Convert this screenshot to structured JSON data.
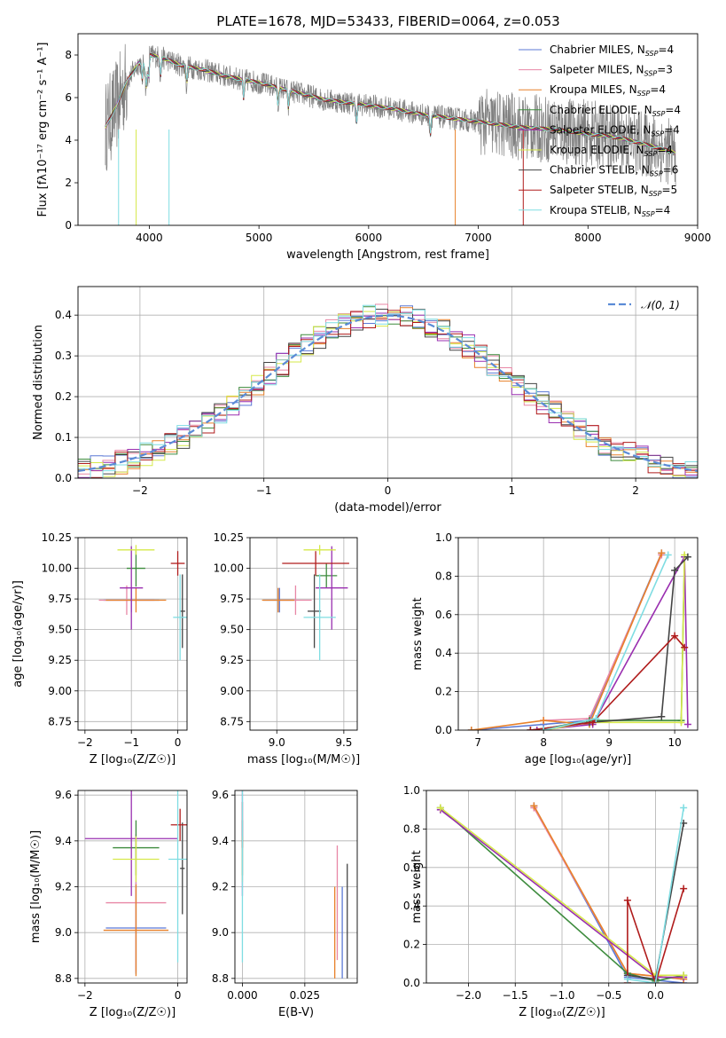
{
  "title": "PLATE=1678, MJD=53433, FIBERID=0064, z=0.053",
  "colors": {
    "chabrier_miles": "#5b79d6",
    "salpeter_miles": "#e887a6",
    "kroupa_miles": "#e8812a",
    "chabrier_elodie": "#3d8b3d",
    "salpeter_elodie": "#9a2fb0",
    "kroupa_elodie": "#d6e84a",
    "chabrier_stelib": "#444444",
    "salpeter_stelib": "#b01c1c",
    "kroupa_stelib": "#7fdde2",
    "data": "#7f7f7f",
    "gauss": "#5b8bd6"
  },
  "chart_data": [
    {
      "id": "spectrum",
      "type": "line",
      "xlabel": "wavelength [Angstrom, rest frame]",
      "ylabel": "Flux [fλ10⁻¹⁷ erg cm⁻² s⁻¹ A⁻¹]",
      "xlim": [
        3350,
        9000
      ],
      "ylim": [
        0,
        9
      ],
      "xticks": [
        "4000",
        "5000",
        "6000",
        "7000",
        "8000",
        "9000"
      ],
      "yticks": [
        "0",
        "2",
        "4",
        "6",
        "8"
      ],
      "continuum": {
        "x": [
          3600,
          3700,
          3800,
          3900,
          4000,
          4100,
          4300,
          4500,
          4700,
          5000,
          5300,
          5600,
          5900,
          6200,
          6500,
          6800,
          7100,
          7400,
          7700,
          8000,
          8300,
          8600,
          8800
        ],
        "y": [
          4.6,
          5.6,
          6.8,
          7.6,
          8.0,
          7.9,
          7.5,
          7.3,
          7.0,
          6.7,
          6.3,
          5.9,
          5.7,
          5.5,
          5.2,
          5.0,
          4.8,
          4.6,
          4.5,
          4.3,
          4.1,
          3.7,
          3.4
        ]
      },
      "legend": [
        {
          "name": "Chabrier MILES, N",
          "sub": "SSP",
          "val": "=4",
          "key": "chabrier_miles"
        },
        {
          "name": "Salpeter MILES, N",
          "sub": "SSP",
          "val": "=3",
          "key": "salpeter_miles"
        },
        {
          "name": "Kroupa MILES, N",
          "sub": "SSP",
          "val": "=4",
          "key": "kroupa_miles"
        },
        {
          "name": "Chabrier ELODIE, N",
          "sub": "SSP",
          "val": "=4",
          "key": "chabrier_elodie"
        },
        {
          "name": "Salpeter ELODIE, N",
          "sub": "SSP",
          "val": "=4",
          "key": "salpeter_elodie"
        },
        {
          "name": "Kroupa ELODIE, N",
          "sub": "SSP",
          "val": "=4",
          "key": "kroupa_elodie"
        },
        {
          "name": "Chabrier STELIB, N",
          "sub": "SSP",
          "val": "=6",
          "key": "chabrier_stelib"
        },
        {
          "name": "Salpeter STELIB, N",
          "sub": "SSP",
          "val": "=5",
          "key": "salpeter_stelib"
        },
        {
          "name": "Kroupa STELIB, N",
          "sub": "SSP",
          "val": "=4",
          "key": "kroupa_stelib"
        }
      ],
      "legend_loc": "top-right"
    },
    {
      "id": "residuals",
      "type": "histogram",
      "xlabel": "(data-model)/error",
      "ylabel": "Normed distribution",
      "xlim": [
        -2.5,
        2.5
      ],
      "ylim": [
        0,
        0.47
      ],
      "xticks": [
        "−2",
        "−1",
        "0",
        "1",
        "2"
      ],
      "yticks": [
        "0.0",
        "0.1",
        "0.2",
        "0.3",
        "0.4"
      ],
      "legend": "𝒩(0, 1)",
      "legend_loc": "top-right",
      "bin_width": 0.1
    },
    {
      "id": "age_vs_Z",
      "type": "scatter",
      "xlabel": "Z [log₁₀(Z/Z☉)]",
      "ylabel": "age  [log₁₀(age/yr)]",
      "xlim": [
        -2.15,
        0.2
      ],
      "ylim": [
        8.68,
        10.25
      ],
      "xticks": [
        "−2",
        "−1",
        "0"
      ],
      "yticks": [
        "8.75",
        "9.00",
        "9.25",
        "9.50",
        "9.75",
        "10.00",
        "10.25"
      ],
      "points": [
        {
          "key": "chabrier_miles",
          "x": -1.0,
          "y": 9.74,
          "xerr": 0.6,
          "yerr": 0.1
        },
        {
          "key": "salpeter_miles",
          "x": -1.1,
          "y": 9.74,
          "xerr": 0.6,
          "yerr": 0.12
        },
        {
          "key": "kroupa_miles",
          "x": -0.9,
          "y": 9.74,
          "xerr": 0.65,
          "yerr": 0.1
        },
        {
          "key": "chabrier_elodie",
          "x": -0.9,
          "y": 10.0,
          "xerr": 0.2,
          "yerr": 0.15
        },
        {
          "key": "salpeter_elodie",
          "x": -1.0,
          "y": 9.84,
          "xerr": 0.25,
          "yerr": 0.34
        },
        {
          "key": "kroupa_elodie",
          "x": -0.9,
          "y": 10.15,
          "xerr": 0.4,
          "yerr": 0.04
        },
        {
          "key": "chabrier_stelib",
          "x": 0.1,
          "y": 9.65,
          "xerr": 0.06,
          "yerr": 0.3
        },
        {
          "key": "salpeter_stelib",
          "x": 0.0,
          "y": 10.04,
          "xerr": 0.15,
          "yerr": 0.1
        },
        {
          "key": "kroupa_stelib",
          "x": 0.05,
          "y": 9.6,
          "xerr": 0.15,
          "yerr": 0.35
        }
      ]
    },
    {
      "id": "age_vs_mass",
      "type": "scatter",
      "xlabel": "mass [log₁₀(M/M☉)]",
      "xlim": [
        8.8,
        9.6
      ],
      "ylim": [
        8.68,
        10.25
      ],
      "xticks": [
        "9.0",
        "9.5"
      ],
      "yticks": [
        "8.75",
        "9.00",
        "9.25",
        "9.50",
        "9.75",
        "10.00",
        "10.25"
      ],
      "points": [
        {
          "key": "chabrier_miles",
          "x": 9.02,
          "y": 9.74,
          "xerr": 0.12,
          "yerr": 0.1
        },
        {
          "key": "salpeter_miles",
          "x": 9.14,
          "y": 9.74,
          "xerr": 0.12,
          "yerr": 0.12
        },
        {
          "key": "kroupa_miles",
          "x": 9.01,
          "y": 9.74,
          "xerr": 0.12,
          "yerr": 0.1
        },
        {
          "key": "chabrier_elodie",
          "x": 9.37,
          "y": 9.94,
          "xerr": 0.08,
          "yerr": 0.1
        },
        {
          "key": "salpeter_elodie",
          "x": 9.41,
          "y": 9.84,
          "xerr": 0.12,
          "yerr": 0.34
        },
        {
          "key": "kroupa_elodie",
          "x": 9.32,
          "y": 10.15,
          "xerr": 0.12,
          "yerr": 0.04
        },
        {
          "key": "chabrier_stelib",
          "x": 9.28,
          "y": 9.65,
          "xerr": 0.05,
          "yerr": 0.3
        },
        {
          "key": "salpeter_stelib",
          "x": 9.29,
          "y": 10.04,
          "xerr": 0.25,
          "yerr": 0.1
        },
        {
          "key": "kroupa_stelib",
          "x": 9.32,
          "y": 9.6,
          "xerr": 0.12,
          "yerr": 0.35
        }
      ]
    },
    {
      "id": "mass_weight_vs_age",
      "type": "line",
      "xlabel": "age  [log₁₀(age/yr)]",
      "ylabel": "mass weight",
      "xlim": [
        6.7,
        10.35
      ],
      "ylim": [
        0,
        1.0
      ],
      "xticks": [
        "7",
        "8",
        "9",
        "10"
      ],
      "yticks": [
        "0.0",
        "0.2",
        "0.4",
        "0.6",
        "0.8",
        "1.0"
      ],
      "series": [
        {
          "key": "chabrier_miles",
          "x": [
            6.9,
            8.0,
            8.7,
            9.8
          ],
          "y": [
            0.0,
            0.03,
            0.05,
            0.92
          ]
        },
        {
          "key": "salpeter_miles",
          "x": [
            8.0,
            8.7,
            9.8
          ],
          "y": [
            0.05,
            0.06,
            0.91
          ]
        },
        {
          "key": "kroupa_miles",
          "x": [
            6.9,
            8.0,
            8.7,
            9.8
          ],
          "y": [
            0.0,
            0.05,
            0.03,
            0.92
          ]
        },
        {
          "key": "chabrier_elodie",
          "x": [
            7.9,
            8.7,
            10.1,
            10.15
          ],
          "y": [
            0.0,
            0.05,
            0.05,
            0.9
          ]
        },
        {
          "key": "salpeter_elodie",
          "x": [
            7.9,
            8.75,
            10.15,
            10.2
          ],
          "y": [
            0.0,
            0.03,
            0.9,
            0.03
          ]
        },
        {
          "key": "kroupa_elodie",
          "x": [
            8.0,
            8.7,
            10.1,
            10.15
          ],
          "y": [
            0.0,
            0.04,
            0.04,
            0.91
          ]
        },
        {
          "key": "chabrier_stelib",
          "x": [
            7.8,
            8.7,
            9.8,
            10.0,
            10.2
          ],
          "y": [
            0.0,
            0.04,
            0.07,
            0.83,
            0.9
          ]
        },
        {
          "key": "salpeter_stelib",
          "x": [
            7.8,
            8.75,
            10.0,
            10.15
          ],
          "y": [
            0.0,
            0.04,
            0.49,
            0.43
          ]
        },
        {
          "key": "kroupa_stelib",
          "x": [
            8.0,
            8.8,
            9.9
          ],
          "y": [
            0.0,
            0.06,
            0.91
          ]
        }
      ]
    },
    {
      "id": "mass_vs_Z",
      "type": "scatter",
      "xlabel": "Z [log₁₀(Z/Z☉)]",
      "ylabel": "mass [log₁₀(M/M☉)]",
      "xlim": [
        -2.15,
        0.2
      ],
      "ylim": [
        8.78,
        9.62
      ],
      "xticks": [
        "−2",
        "0"
      ],
      "yticks": [
        "8.8",
        "9.0",
        "9.2",
        "9.4",
        "9.6"
      ],
      "points": [
        {
          "key": "chabrier_miles",
          "x": -0.9,
          "y": 9.02,
          "xerr": 0.65,
          "yerr": 0.2
        },
        {
          "key": "salpeter_miles",
          "x": -0.9,
          "y": 9.13,
          "xerr": 0.65,
          "yerr": 0.3
        },
        {
          "key": "kroupa_miles",
          "x": -0.9,
          "y": 9.01,
          "xerr": 0.7,
          "yerr": 0.2
        },
        {
          "key": "chabrier_elodie",
          "x": -0.9,
          "y": 9.37,
          "xerr": 0.5,
          "yerr": 0.12
        },
        {
          "key": "salpeter_elodie",
          "x": -1.0,
          "y": 9.41,
          "xerr": 1.0,
          "yerr": 0.25
        },
        {
          "key": "kroupa_elodie",
          "x": -0.9,
          "y": 9.32,
          "xerr": 0.5,
          "yerr": 0.1
        },
        {
          "key": "chabrier_stelib",
          "x": 0.1,
          "y": 9.28,
          "xerr": 0.05,
          "yerr": 0.2
        },
        {
          "key": "salpeter_stelib",
          "x": 0.05,
          "y": 9.47,
          "xerr": 0.2,
          "yerr": 0.07
        },
        {
          "key": "kroupa_stelib",
          "x": 0.0,
          "y": 9.32,
          "xerr": 0.2,
          "yerr": 0.45
        }
      ]
    },
    {
      "id": "mass_vs_ebv",
      "type": "scatter",
      "xlabel": "E(B-V)",
      "xlim": [
        -0.003,
        0.046
      ],
      "ylim": [
        8.78,
        9.62
      ],
      "xticks": [
        "0.000",
        "0.025"
      ],
      "yticks": [
        "8.8",
        "9.0",
        "9.2",
        "9.4",
        "9.6"
      ],
      "points": [
        {
          "key": "chabrier_miles",
          "x": 0.04,
          "y": 9.0,
          "yerr": 0.2
        },
        {
          "key": "salpeter_miles",
          "x": 0.038,
          "y": 9.13,
          "yerr": 0.25
        },
        {
          "key": "kroupa_miles",
          "x": 0.037,
          "y": 9.0,
          "yerr": 0.2
        },
        {
          "key": "chabrier_elodie",
          "x": 0.0,
          "y": 9.37,
          "yerr": 0.12
        },
        {
          "key": "salpeter_elodie",
          "x": 0.0,
          "y": 9.41,
          "yerr": 0.25
        },
        {
          "key": "kroupa_elodie",
          "x": 0.0,
          "y": 9.32,
          "yerr": 0.1
        },
        {
          "key": "chabrier_stelib",
          "x": 0.042,
          "y": 9.05,
          "yerr": 0.25
        },
        {
          "key": "salpeter_stelib",
          "x": 0.0,
          "y": 9.47,
          "yerr": 0.1
        },
        {
          "key": "kroupa_stelib",
          "x": 0.0,
          "y": 9.32,
          "yerr": 0.45
        }
      ]
    },
    {
      "id": "mass_weight_vs_Z",
      "type": "line",
      "xlabel": "Z [log₁₀(Z/Z☉)]",
      "ylabel": "mass weight",
      "xlim": [
        -2.45,
        0.45
      ],
      "ylim": [
        0,
        1.0
      ],
      "xticks": [
        "−2.0",
        "−1.5",
        "−1.0",
        "−0.5",
        "0.0"
      ],
      "yticks": [
        "0.0",
        "0.2",
        "0.4",
        "0.6",
        "0.8",
        "1.0"
      ],
      "series": [
        {
          "key": "chabrier_miles",
          "x": [
            -1.3,
            -0.3,
            0.3
          ],
          "y": [
            0.92,
            0.03,
            0.0
          ]
        },
        {
          "key": "salpeter_miles",
          "x": [
            -1.3,
            -0.3,
            0.3
          ],
          "y": [
            0.91,
            0.05,
            0.02
          ]
        },
        {
          "key": "kroupa_miles",
          "x": [
            -1.3,
            -0.3,
            0.3
          ],
          "y": [
            0.92,
            0.05,
            0.02
          ]
        },
        {
          "key": "chabrier_elodie",
          "x": [
            -2.3,
            -0.3,
            0.0,
            0.3
          ],
          "y": [
            0.91,
            0.05,
            0.01,
            0.04
          ]
        },
        {
          "key": "salpeter_elodie",
          "x": [
            -2.3,
            0.0,
            0.3
          ],
          "y": [
            0.9,
            0.03,
            0.03
          ]
        },
        {
          "key": "kroupa_elodie",
          "x": [
            -2.3,
            0.0,
            0.3
          ],
          "y": [
            0.91,
            0.04,
            0.04
          ]
        },
        {
          "key": "chabrier_stelib",
          "x": [
            -0.3,
            0.0,
            0.3
          ],
          "y": [
            0.04,
            0.02,
            0.83
          ]
        },
        {
          "key": "salpeter_stelib",
          "x": [
            -0.3,
            -0.3,
            0.0,
            0.3
          ],
          "y": [
            0.0,
            0.43,
            0.0,
            0.49
          ]
        },
        {
          "key": "kroupa_stelib",
          "x": [
            -0.3,
            0.0,
            0.3
          ],
          "y": [
            0.02,
            0.0,
            0.91
          ]
        }
      ]
    }
  ]
}
